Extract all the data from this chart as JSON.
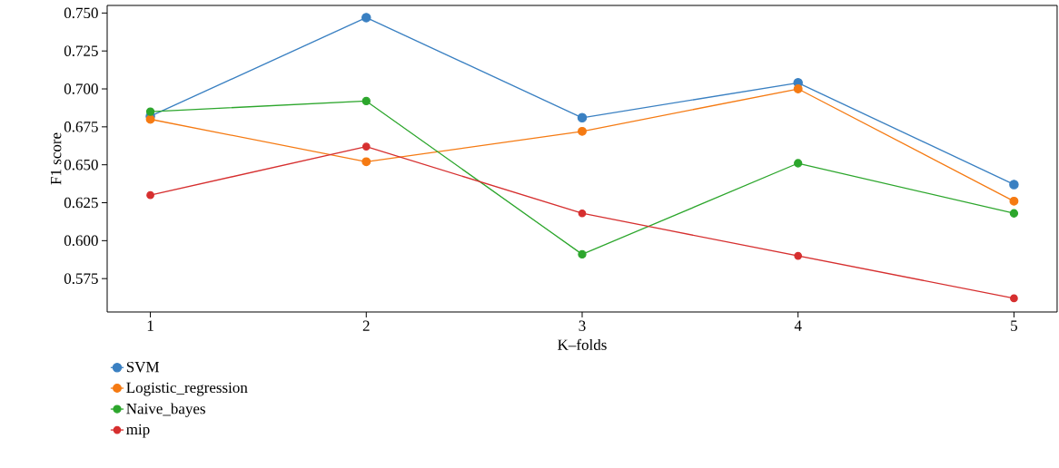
{
  "chart_data": {
    "type": "line",
    "xlabel": "K–folds",
    "ylabel": "F1 score",
    "x": [
      1,
      2,
      3,
      4,
      5
    ],
    "xlim": [
      0.8,
      5.2
    ],
    "xticks": [
      1,
      2,
      3,
      4,
      5
    ],
    "ylim": [
      0.553,
      0.755
    ],
    "yticks": [
      0.575,
      {
        "value": 0.6,
        "label": "0.600"
      },
      0.625,
      {
        "value": 0.65,
        "label": "0.650"
      },
      0.675,
      {
        "value": 0.7,
        "label": "0.700"
      },
      0.725,
      {
        "value": 0.75,
        "label": "0.750"
      }
    ],
    "marker": "circle",
    "legend": "bottom left",
    "series": [
      {
        "name": "SVM",
        "color": "#3a80c2",
        "values": [
          0.682,
          0.747,
          0.681,
          0.704,
          0.637
        ]
      },
      {
        "name": "Logistic_regression",
        "color": "#f57a12",
        "values": [
          0.68,
          0.652,
          0.672,
          0.7,
          0.626
        ]
      },
      {
        "name": "Naive_bayes",
        "color": "#2ca62c",
        "values": [
          0.685,
          0.692,
          0.591,
          0.651,
          0.618
        ]
      },
      {
        "name": "mip",
        "color": "#d62f2f",
        "values": [
          0.63,
          0.662,
          0.618,
          0.59,
          0.562
        ]
      }
    ]
  }
}
